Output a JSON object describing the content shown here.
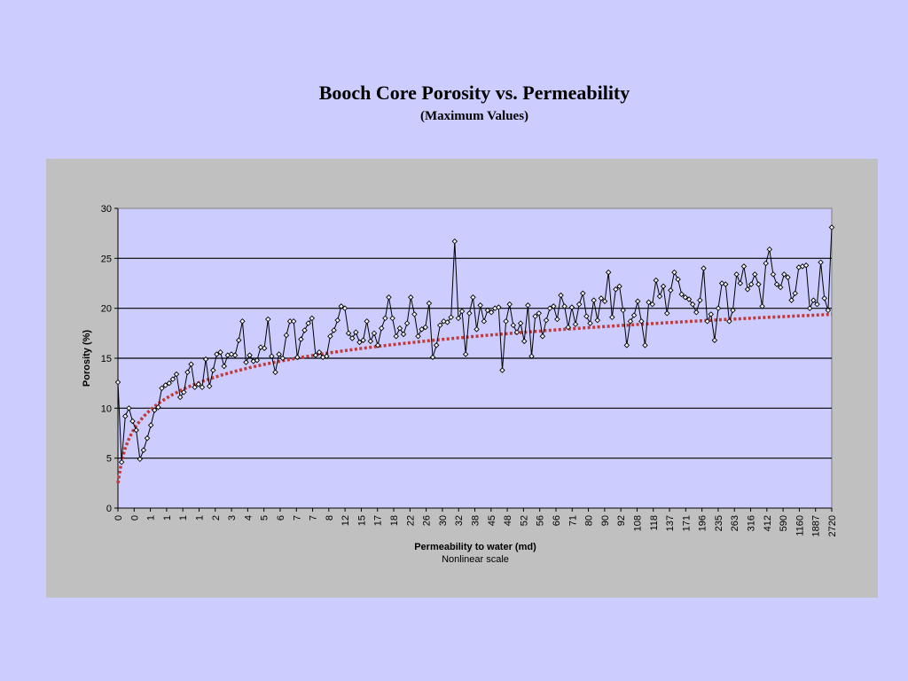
{
  "page": {
    "title": "Booch Core Porosity vs. Permeability",
    "subtitle": "(Maximum Values)"
  },
  "chart_data": {
    "type": "line",
    "ylabel": "Porosity (%)",
    "xlabel": "Permeability to water (md)",
    "xlabel_note": "Nonlinear scale",
    "ylim": [
      0,
      30
    ],
    "yticks": [
      0,
      5,
      10,
      15,
      20,
      25,
      30
    ],
    "grid": "horizontal",
    "x_tick_labels": [
      "0",
      "0",
      "1",
      "1",
      "1",
      "1",
      "2",
      "3",
      "4",
      "5",
      "6",
      "7",
      "7",
      "8",
      "12",
      "15",
      "17",
      "18",
      "22",
      "26",
      "30",
      "32",
      "38",
      "45",
      "48",
      "52",
      "56",
      "66",
      "71",
      "80",
      "90",
      "92",
      "108",
      "118",
      "137",
      "171",
      "196",
      "235",
      "263",
      "316",
      "412",
      "590",
      "1160",
      "1887",
      "2720"
    ],
    "series": [
      {
        "kind": "data",
        "color": "#000000",
        "values": [
          12.6,
          4.6,
          9.2,
          10.0,
          8.7,
          7.8,
          4.9,
          5.8,
          7.0,
          8.3,
          9.8,
          10.1,
          12.0,
          12.3,
          12.5,
          12.9,
          13.4,
          11.1,
          11.6,
          13.6,
          14.4,
          12.1,
          12.4,
          12.1,
          14.9,
          12.2,
          13.8,
          15.4,
          15.6,
          14.2,
          15.3,
          15.4,
          15.3,
          16.8,
          18.7,
          14.6,
          15.3,
          14.7,
          14.8,
          16.1,
          16.0,
          18.9,
          15.2,
          13.6,
          15.4,
          15.0,
          17.3,
          18.7,
          18.7,
          15.1,
          16.9,
          17.8,
          18.5,
          19.0,
          15.3,
          15.6,
          15.1,
          15.2,
          17.2,
          17.8,
          18.8,
          20.2,
          20.0,
          17.5,
          17.0,
          17.6,
          16.6,
          16.8,
          18.7,
          16.7,
          17.5,
          16.3,
          18.0,
          19.0,
          21.1,
          19.0,
          17.2,
          18.0,
          17.4,
          18.5,
          21.1,
          19.4,
          17.2,
          17.9,
          18.1,
          20.5,
          15.1,
          16.3,
          18.3,
          18.7,
          18.6,
          19.1,
          26.7,
          19.0,
          19.7,
          15.4,
          19.5,
          21.1,
          17.9,
          20.3,
          18.7,
          19.8,
          19.6,
          20.0,
          20.1,
          13.8,
          18.7,
          20.4,
          18.3,
          17.6,
          18.5,
          16.7,
          20.3,
          15.2,
          19.2,
          19.5,
          17.2,
          18.8,
          20.0,
          20.2,
          18.9,
          21.3,
          20.2,
          18.1,
          20.1,
          18.4,
          20.4,
          21.5,
          19.2,
          18.5,
          20.8,
          18.8,
          21.0,
          20.7,
          23.6,
          19.1,
          21.9,
          22.2,
          19.8,
          16.3,
          18.7,
          19.3,
          20.7,
          18.7,
          16.3,
          20.6,
          20.4,
          22.8,
          21.2,
          22.2,
          19.5,
          21.8,
          23.6,
          22.9,
          21.4,
          21.1,
          20.9,
          20.4,
          19.6,
          20.8,
          24.0,
          18.7,
          19.4,
          16.8,
          20.0,
          22.5,
          22.4,
          18.7,
          19.8,
          23.4,
          22.5,
          24.2,
          21.9,
          22.4,
          23.4,
          22.4,
          20.2,
          24.5,
          25.9,
          23.4,
          22.4,
          22.1,
          23.4,
          23.1,
          20.8,
          21.5,
          24.1,
          24.2,
          24.3,
          20.0,
          20.8,
          20.4,
          24.6,
          21.0,
          19.8,
          28.1
        ]
      },
      {
        "kind": "trend",
        "color": "#c03a3a",
        "formula": "2.5 + 3.2*ln(1+x)"
      }
    ]
  }
}
